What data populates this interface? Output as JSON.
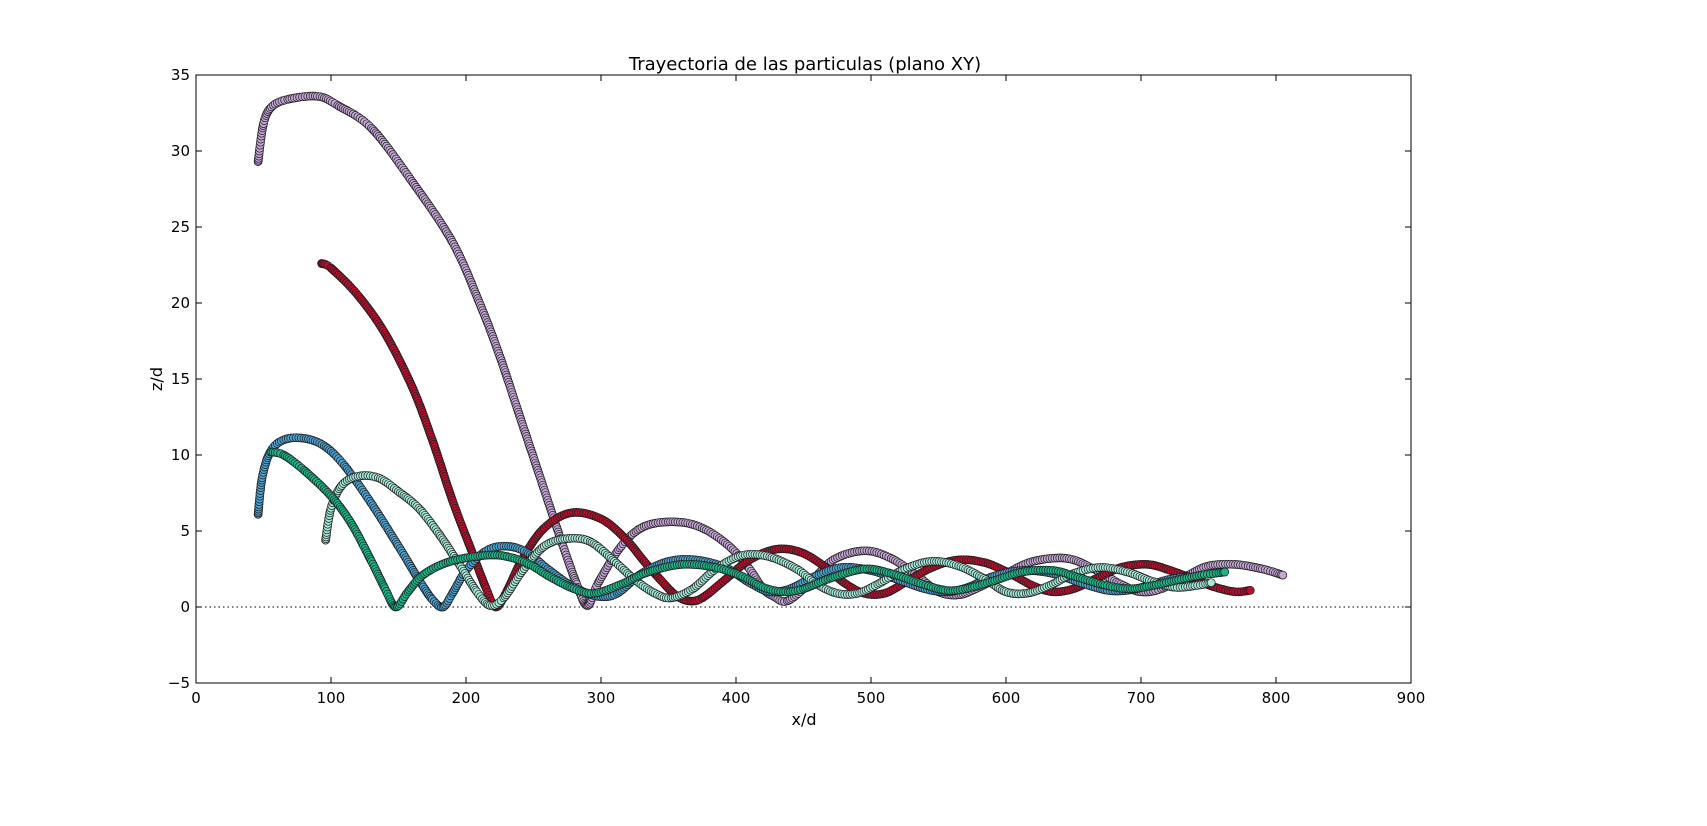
{
  "chart_data": {
    "type": "scatter",
    "title": "Trayectoria de las particulas (plano XY)",
    "xlabel": "x/d",
    "ylabel": "z/d",
    "xlim": [
      0,
      900
    ],
    "ylim": [
      -5,
      35
    ],
    "xticks": [
      "0",
      "100",
      "200",
      "300",
      "400",
      "500",
      "600",
      "700",
      "800",
      "900"
    ],
    "yticks": [
      "−5",
      "0",
      "5",
      "10",
      "15",
      "20",
      "25",
      "30",
      "35"
    ],
    "grid": false,
    "legend": "none",
    "reference_line": {
      "y": 0,
      "style": "dotted"
    },
    "series": [
      {
        "color": "#c6a6d6",
        "points": [
          [
            46,
            29.3
          ],
          [
            50,
            31.8
          ],
          [
            56,
            32.9
          ],
          [
            68,
            33.4
          ],
          [
            90,
            33.6
          ],
          [
            105,
            33.0
          ],
          [
            130,
            31.5
          ],
          [
            160,
            28.0
          ],
          [
            190,
            24.0
          ],
          [
            210,
            20.0
          ],
          [
            225,
            16.5
          ],
          [
            240,
            12.5
          ],
          [
            255,
            8.5
          ],
          [
            270,
            4.5
          ],
          [
            282,
            1.5
          ],
          [
            290,
            0.1
          ],
          [
            298,
            1.6
          ],
          [
            315,
            4.0
          ],
          [
            332,
            5.3
          ],
          [
            355,
            5.6
          ],
          [
            375,
            5.2
          ],
          [
            395,
            4.0
          ],
          [
            410,
            2.5
          ],
          [
            420,
            1.2
          ],
          [
            428,
            0.7
          ],
          [
            438,
            0.4
          ],
          [
            455,
            1.6
          ],
          [
            472,
            3.1
          ],
          [
            495,
            3.7
          ],
          [
            515,
            3.2
          ],
          [
            535,
            2.0
          ],
          [
            550,
            1.0
          ],
          [
            565,
            0.8
          ],
          [
            580,
            1.3
          ],
          [
            600,
            2.2
          ],
          [
            620,
            3.0
          ],
          [
            645,
            3.2
          ],
          [
            665,
            2.5
          ],
          [
            685,
            1.5
          ],
          [
            700,
            1.0
          ],
          [
            715,
            1.2
          ],
          [
            735,
            2.1
          ],
          [
            750,
            2.7
          ],
          [
            770,
            2.8
          ],
          [
            790,
            2.5
          ],
          [
            805,
            2.1
          ]
        ]
      },
      {
        "color": "#b5112e",
        "points": [
          [
            93,
            22.6
          ],
          [
            100,
            22.3
          ],
          [
            120,
            20.5
          ],
          [
            140,
            18.0
          ],
          [
            160,
            14.5
          ],
          [
            175,
            11.0
          ],
          [
            190,
            7.0
          ],
          [
            205,
            3.5
          ],
          [
            215,
            1.2
          ],
          [
            222,
            0.0
          ],
          [
            230,
            1.0
          ],
          [
            242,
            3.2
          ],
          [
            258,
            5.2
          ],
          [
            278,
            6.2
          ],
          [
            300,
            5.8
          ],
          [
            318,
            4.5
          ],
          [
            332,
            3.0
          ],
          [
            345,
            1.7
          ],
          [
            355,
            0.8
          ],
          [
            365,
            0.4
          ],
          [
            375,
            0.6
          ],
          [
            392,
            1.8
          ],
          [
            410,
            3.1
          ],
          [
            430,
            3.8
          ],
          [
            448,
            3.6
          ],
          [
            465,
            2.7
          ],
          [
            480,
            1.6
          ],
          [
            495,
            0.9
          ],
          [
            510,
            0.9
          ],
          [
            525,
            1.6
          ],
          [
            545,
            2.6
          ],
          [
            565,
            3.1
          ],
          [
            585,
            2.9
          ],
          [
            603,
            2.2
          ],
          [
            620,
            1.4
          ],
          [
            635,
            1.0
          ],
          [
            650,
            1.2
          ],
          [
            665,
            1.8
          ],
          [
            685,
            2.6
          ],
          [
            705,
            2.8
          ],
          [
            722,
            2.4
          ],
          [
            740,
            1.8
          ],
          [
            755,
            1.3
          ],
          [
            770,
            1.0
          ],
          [
            781,
            1.1
          ]
        ]
      },
      {
        "color": "#4ea3d3",
        "points": [
          [
            46,
            6.1
          ],
          [
            49,
            8.5
          ],
          [
            55,
            10.2
          ],
          [
            65,
            11.0
          ],
          [
            80,
            11.1
          ],
          [
            95,
            10.6
          ],
          [
            110,
            9.3
          ],
          [
            130,
            6.8
          ],
          [
            150,
            4.0
          ],
          [
            165,
            1.8
          ],
          [
            175,
            0.5
          ],
          [
            183,
            0.0
          ],
          [
            190,
            0.9
          ],
          [
            200,
            2.4
          ],
          [
            215,
            3.7
          ],
          [
            230,
            4.0
          ],
          [
            245,
            3.6
          ],
          [
            262,
            2.4
          ],
          [
            280,
            1.3
          ],
          [
            298,
            0.7
          ],
          [
            312,
            0.9
          ],
          [
            330,
            2.2
          ],
          [
            350,
            3.0
          ],
          [
            370,
            3.1
          ],
          [
            392,
            2.6
          ],
          [
            410,
            1.6
          ],
          [
            425,
            1.0
          ],
          [
            440,
            1.2
          ],
          [
            458,
            2.0
          ],
          [
            478,
            2.6
          ],
          [
            500,
            2.4
          ],
          [
            520,
            1.8
          ],
          [
            540,
            1.2
          ],
          [
            556,
            1.0
          ],
          [
            572,
            1.3
          ],
          [
            590,
            2.0
          ],
          [
            612,
            2.4
          ],
          [
            635,
            2.2
          ],
          [
            655,
            1.6
          ],
          [
            675,
            1.1
          ],
          [
            690,
            1.1
          ],
          [
            705,
            1.4
          ],
          [
            720,
            1.8
          ],
          [
            735,
            2.0
          ]
        ]
      },
      {
        "color": "#a4e8d8",
        "points": [
          [
            96,
            4.4
          ],
          [
            100,
            6.5
          ],
          [
            108,
            8.0
          ],
          [
            120,
            8.6
          ],
          [
            135,
            8.5
          ],
          [
            150,
            7.6
          ],
          [
            165,
            6.5
          ],
          [
            180,
            4.8
          ],
          [
            195,
            2.8
          ],
          [
            208,
            1.0
          ],
          [
            218,
            0.1
          ],
          [
            228,
            0.6
          ],
          [
            242,
            2.4
          ],
          [
            258,
            4.0
          ],
          [
            275,
            4.5
          ],
          [
            292,
            4.3
          ],
          [
            310,
            3.0
          ],
          [
            325,
            1.8
          ],
          [
            340,
            0.9
          ],
          [
            352,
            0.6
          ],
          [
            368,
            1.2
          ],
          [
            385,
            2.5
          ],
          [
            405,
            3.4
          ],
          [
            425,
            3.3
          ],
          [
            445,
            2.5
          ],
          [
            460,
            1.5
          ],
          [
            475,
            0.9
          ],
          [
            490,
            0.9
          ],
          [
            505,
            1.5
          ],
          [
            525,
            2.5
          ],
          [
            545,
            3.0
          ],
          [
            565,
            2.7
          ],
          [
            585,
            1.8
          ],
          [
            600,
            1.0
          ],
          [
            615,
            0.9
          ],
          [
            632,
            1.4
          ],
          [
            650,
            2.2
          ],
          [
            670,
            2.6
          ],
          [
            690,
            2.3
          ],
          [
            708,
            1.7
          ],
          [
            725,
            1.3
          ],
          [
            740,
            1.4
          ],
          [
            752,
            1.6
          ]
        ]
      },
      {
        "color": "#1bb589",
        "points": [
          [
            56,
            10.2
          ],
          [
            65,
            10.0
          ],
          [
            80,
            9.0
          ],
          [
            100,
            7.3
          ],
          [
            115,
            5.5
          ],
          [
            130,
            3.0
          ],
          [
            140,
            1.2
          ],
          [
            148,
            0.0
          ],
          [
            157,
            1.0
          ],
          [
            168,
            2.1
          ],
          [
            185,
            2.9
          ],
          [
            205,
            3.3
          ],
          [
            225,
            3.4
          ],
          [
            245,
            2.9
          ],
          [
            262,
            2.0
          ],
          [
            280,
            1.2
          ],
          [
            295,
            0.9
          ],
          [
            315,
            1.5
          ],
          [
            335,
            2.3
          ],
          [
            360,
            2.8
          ],
          [
            385,
            2.6
          ],
          [
            405,
            2.0
          ],
          [
            420,
            1.3
          ],
          [
            435,
            1.0
          ],
          [
            450,
            1.2
          ],
          [
            470,
            1.9
          ],
          [
            495,
            2.5
          ],
          [
            515,
            2.2
          ],
          [
            535,
            1.6
          ],
          [
            555,
            1.1
          ],
          [
            570,
            1.2
          ],
          [
            590,
            1.7
          ],
          [
            612,
            2.3
          ],
          [
            635,
            2.4
          ],
          [
            655,
            1.9
          ],
          [
            675,
            1.4
          ],
          [
            692,
            1.2
          ],
          [
            708,
            1.4
          ],
          [
            728,
            1.8
          ],
          [
            745,
            2.1
          ],
          [
            762,
            2.3
          ]
        ]
      }
    ]
  }
}
